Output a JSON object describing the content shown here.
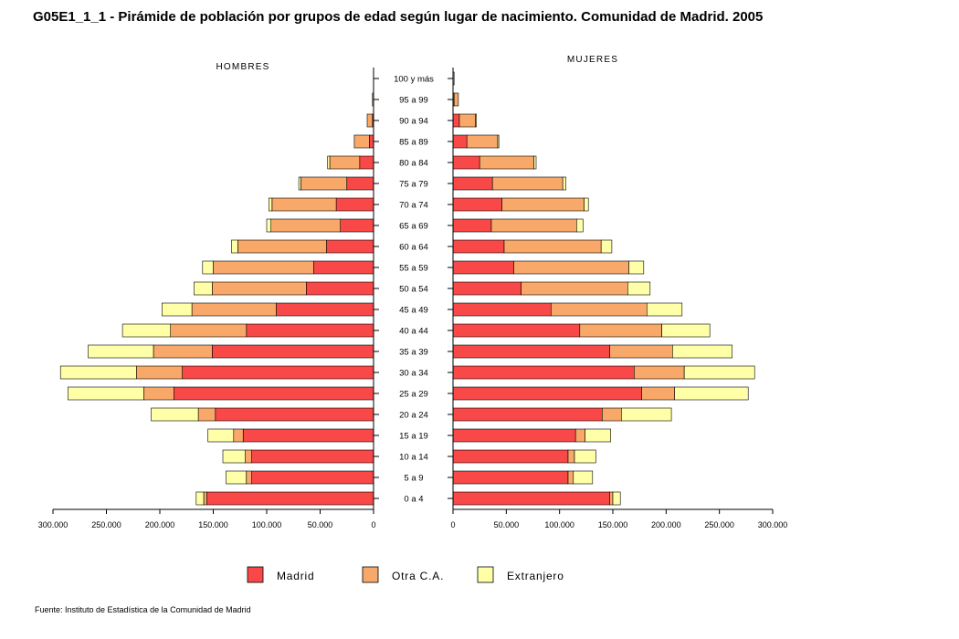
{
  "title": "G05E1_1_1 - Pirámide de población por grupos de edad según lugar de nacimiento. Comunidad de Madrid.  2005",
  "source": "Fuente: Instituto de Estadística de la Comunidad de Madrid",
  "chart_data": {
    "type": "bar",
    "orientation": "horizontal-pyramid",
    "stacked": true,
    "title": "G05E1_1_1 - Pirámide de población por grupos de edad según lugar de nacimiento. Comunidad de Madrid.  2005",
    "categories": [
      "100 y más",
      "95 a 99",
      "90 a 94",
      "85 a 89",
      "80 a 84",
      "75 a 79",
      "70 a 74",
      "65 a 69",
      "60 a 64",
      "55 a 59",
      "50 a 54",
      "45 a 49",
      "40 a  44",
      "35 a 39",
      "30 a 34",
      "25 a 29",
      "20 a 24",
      "15 a 19",
      "10 a 14",
      "5 a 9",
      "0 a 4"
    ],
    "panels": [
      {
        "label": "HOMBRES",
        "xlim": [
          0,
          300000
        ],
        "ticks": [
          "300.000",
          "250.000",
          "200.000",
          "150.000",
          "100.000",
          "50.000",
          "0"
        ],
        "series": [
          {
            "name": "Madrid",
            "values": [
              0,
              0,
              1000,
              4000,
              13000,
              25000,
              35000,
              31000,
              44000,
              56000,
              63000,
              91000,
              119000,
              151000,
              179000,
              187000,
              148000,
              122000,
              114000,
              114000,
              156000
            ]
          },
          {
            "name": "Otra C.A.",
            "values": [
              0,
              1000,
              5000,
              14000,
              28000,
              43000,
              60000,
              65000,
              83000,
              94000,
              88000,
              79000,
              71000,
              55000,
              43000,
              28000,
              16000,
              9000,
              6000,
              5000,
              3000
            ]
          },
          {
            "name": "Extranjero",
            "values": [
              0,
              0,
              0,
              0,
              2000,
              2000,
              3000,
              4000,
              6000,
              10000,
              17000,
              28000,
              45000,
              61000,
              71000,
              71000,
              44000,
              24000,
              21000,
              19000,
              7000
            ]
          }
        ]
      },
      {
        "label": "MUJERES",
        "xlim": [
          0,
          300000
        ],
        "ticks": [
          "0",
          "50.000",
          "100.000",
          "150.000",
          "200.000",
          "250.000",
          "300.000"
        ],
        "series": [
          {
            "name": "Madrid",
            "values": [
              0,
              1000,
              6000,
              13000,
              25000,
              37000,
              46000,
              36000,
              48000,
              57000,
              64000,
              92000,
              119000,
              147000,
              170000,
              177000,
              140000,
              115000,
              108000,
              108000,
              147000
            ]
          },
          {
            "name": "Otra C.A.",
            "values": [
              1000,
              4000,
              15000,
              29000,
              51000,
              66000,
              77000,
              80000,
              91000,
              108000,
              100000,
              90000,
              77000,
              59000,
              47000,
              31000,
              18000,
              9000,
              6000,
              5000,
              3000
            ]
          },
          {
            "name": "Extranjero",
            "values": [
              0,
              0,
              1000,
              1000,
              2000,
              3000,
              4000,
              6000,
              10000,
              14000,
              21000,
              33000,
              45000,
              56000,
              66000,
              69000,
              47000,
              24000,
              20000,
              18000,
              7000
            ]
          }
        ]
      }
    ],
    "legend": [
      "Madrid",
      "Otra C.A.",
      "Extranjero"
    ],
    "legend_position": "bottom",
    "grid": false
  },
  "colors": {
    "Madrid": "#f84848",
    "Otra C.A.": "#f8a868",
    "Extranjero": "#ffffa8"
  }
}
